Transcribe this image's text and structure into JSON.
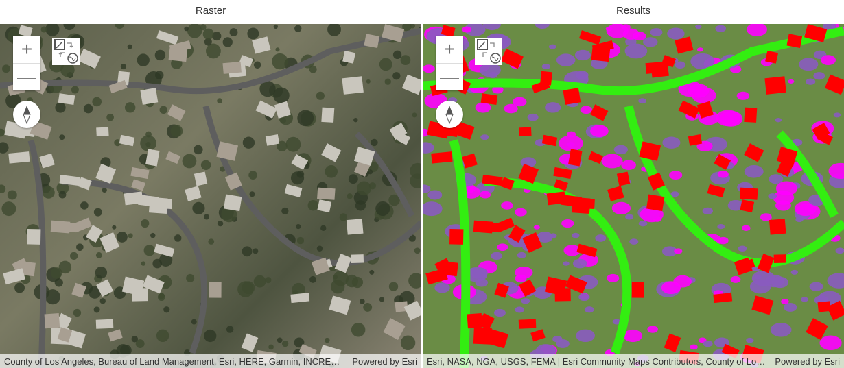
{
  "left": {
    "title": "Raster",
    "attribution": "County of Los Angeles, Bureau of Land Management, Esri, HERE, Garmin, INCREMENT P, METI/NASA, USGS",
    "powered_by": "Powered by Esri"
  },
  "right": {
    "title": "Results",
    "attribution": "Esri, NASA, NGA, USGS, FEMA | Esri Community Maps Contributors, County of Los Angeles",
    "powered_by": "Powered by Esri"
  },
  "controls": {
    "zoom_in": "+",
    "zoom_out": "—",
    "icons": [
      "plus-icon",
      "minus-icon",
      "swap-layers-icon",
      "compass-icon"
    ]
  },
  "class_colors": {
    "building": "#ff0000",
    "road": "#33ee11",
    "vegetation": "#6a8c45",
    "impervious": "#ff00ff",
    "tree": "#8a5bbf",
    "bare": "#d4938f",
    "water": "#33aa66"
  }
}
